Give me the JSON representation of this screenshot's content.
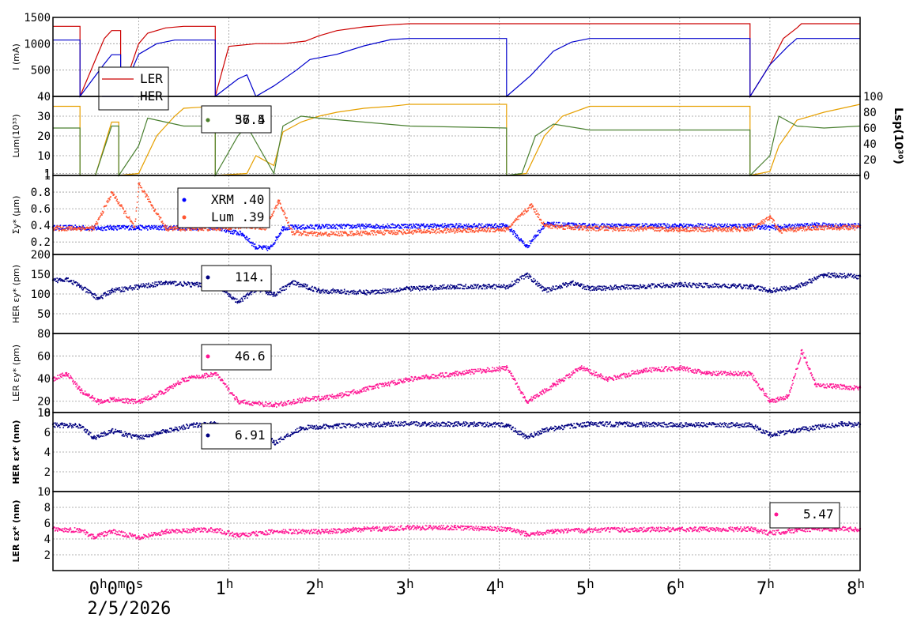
{
  "chart_data": {
    "type": "line",
    "x_ticks": [
      "0h0m0s",
      "1h",
      "2h",
      "3h",
      "4h",
      "5h",
      "6h",
      "7h",
      "8h"
    ],
    "x_tick_values": [
      0,
      1,
      2,
      3,
      4,
      5,
      6,
      7,
      8
    ],
    "x_range": [
      -0.95,
      8
    ],
    "date": "2/5/2026",
    "panels": [
      {
        "ylabel": "I (mA)",
        "ylim": [
          0,
          1500
        ],
        "yticks": [
          "500",
          "1000",
          "1500"
        ],
        "ytick_values": [
          500,
          1000,
          1500
        ],
        "legend": {
          "entries": [
            "LER",
            "HER"
          ],
          "placement": "top-left"
        },
        "series": [
          {
            "name": "LER",
            "color": "#cc0000",
            "style": "line",
            "x": [
              -0.95,
              -0.65,
              -0.65,
              -0.38,
              -0.3,
              -0.2,
              -0.2,
              0,
              0.1,
              0.3,
              0.5,
              0.85,
              0.85,
              1.0,
              1.3,
              1.6,
              1.85,
              2.0,
              2.2,
              2.5,
              2.8,
              3.0,
              3.3,
              4.0,
              5.0,
              6.0,
              6.78,
              6.78,
              7.0,
              7.15,
              7.3,
              7.35,
              8.0
            ],
            "y": [
              1330,
              1330,
              0,
              1100,
              1250,
              1250,
              0,
              1000,
              1200,
              1300,
              1330,
              1330,
              0,
              950,
              1000,
              1000,
              1050,
              1150,
              1250,
              1320,
              1360,
              1380,
              1380,
              1380,
              1380,
              1380,
              1380,
              0,
              600,
              1100,
              1300,
              1380,
              1380
            ]
          },
          {
            "name": "HER",
            "color": "#0000cc",
            "style": "line",
            "x": [
              -0.95,
              -0.65,
              -0.65,
              -0.38,
              -0.3,
              -0.2,
              -0.2,
              0,
              0.2,
              0.4,
              0.85,
              0.85,
              1.1,
              1.2,
              1.3,
              1.5,
              1.75,
              1.9,
              2.2,
              2.5,
              2.8,
              3.0,
              3.5,
              4.08,
              4.08,
              4.35,
              4.6,
              4.8,
              5.0,
              6.0,
              6.78,
              6.78,
              7.0,
              7.2,
              7.3,
              8.0
            ],
            "y": [
              1070,
              1070,
              0,
              620,
              790,
              790,
              0,
              800,
              1000,
              1070,
              1070,
              0,
              330,
              410,
              0,
              200,
              500,
              700,
              800,
              960,
              1080,
              1100,
              1100,
              1100,
              0,
              400,
              860,
              1030,
              1100,
              1100,
              1100,
              0,
              600,
              950,
              1100,
              1100
            ]
          }
        ]
      },
      {
        "ylabel": "Lum(10³³)",
        "ylim": [
          0,
          40
        ],
        "yticks": [
          "1",
          "10",
          "20",
          "30",
          "40"
        ],
        "ytick_values": [
          1,
          10,
          20,
          30,
          40
        ],
        "ylabel_right": "Lsp(10³⁰)",
        "ylim_right": [
          0,
          100
        ],
        "yticks_right": [
          "0",
          "20",
          "40",
          "60",
          "80",
          "100"
        ],
        "ytick_values_right": [
          0,
          20,
          40,
          60,
          80,
          100
        ],
        "legend": {
          "entries": [
            "57.4",
            "36.5"
          ],
          "placement": "top-left"
        },
        "series": [
          {
            "name": "57.4",
            "color": "#e6a000",
            "style": "line",
            "x": [
              -0.95,
              -0.65,
              -0.65,
              -0.48,
              -0.3,
              -0.22,
              -0.22,
              0,
              0.2,
              0.4,
              0.5,
              0.85,
              0.85,
              1.2,
              1.3,
              1.5,
              1.6,
              1.8,
              2.0,
              2.2,
              2.5,
              2.8,
              3.0,
              4.08,
              4.08,
              4.3,
              4.5,
              4.7,
              5.0,
              6.0,
              6.78,
              6.78,
              7.0,
              7.1,
              7.3,
              7.6,
              8.0
            ],
            "y": [
              35,
              35,
              0,
              0,
              27,
              27,
              0,
              1,
              20,
              30,
              34,
              35,
              0,
              1,
              10,
              5,
              22,
              27,
              30,
              32,
              34,
              35,
              36,
              36,
              0,
              1,
              20,
              30,
              35,
              35,
              35,
              0,
              2,
              15,
              28,
              32,
              36
            ]
          },
          {
            "name": "36.5",
            "color": "#4a8030",
            "style": "line",
            "x": [
              -0.95,
              -0.65,
              -0.65,
              -0.48,
              -0.3,
              -0.22,
              -0.22,
              0,
              0.1,
              0.3,
              0.5,
              0.85,
              0.85,
              1.1,
              1.2,
              1.5,
              1.6,
              1.8,
              2.0,
              2.5,
              3.0,
              4.08,
              4.08,
              4.25,
              4.4,
              4.6,
              5.0,
              6.0,
              6.78,
              6.78,
              7.0,
              7.1,
              7.3,
              7.6,
              8.0
            ],
            "y": [
              24,
              24,
              0,
              0,
              25,
              25,
              0,
              15,
              29,
              27,
              25,
              25,
              0,
              20,
              25,
              1,
              25,
              30,
              29,
              27,
              25,
              24,
              0,
              1,
              20,
              26,
              23,
              23,
              23,
              0,
              10,
              30,
              25,
              24,
              25
            ]
          }
        ]
      },
      {
        "ylabel": "Σy* (µm)",
        "ylim": [
          0.05,
          1.0
        ],
        "yticks": [
          "0.2",
          "0.4",
          "0.6",
          "0.8",
          "1"
        ],
        "ytick_values": [
          0.2,
          0.4,
          0.6,
          0.8,
          1.0
        ],
        "legend": {
          "entries": [
            "XRM   .40",
            "Lum   .39"
          ],
          "placement": "top-left"
        },
        "series": [
          {
            "name": "XRM   .40",
            "color": "#0000ff",
            "style": "points",
            "x": [
              -0.95,
              -0.65,
              -0.5,
              -0.3,
              0,
              0.5,
              0.85,
              1.15,
              1.3,
              1.45,
              1.6,
              2.0,
              3.0,
              4.08,
              4.3,
              4.5,
              5.0,
              6.0,
              6.78,
              7.0,
              7.5,
              8.0
            ],
            "y": [
              0.38,
              0.38,
              0.37,
              0.38,
              0.38,
              0.38,
              0.38,
              0.3,
              0.14,
              0.13,
              0.38,
              0.39,
              0.4,
              0.4,
              0.15,
              0.42,
              0.4,
              0.4,
              0.4,
              0.38,
              0.41,
              0.4
            ]
          },
          {
            "name": "Lum   .39",
            "color": "#ff5530",
            "style": "points",
            "x": [
              -0.95,
              -0.65,
              -0.5,
              -0.3,
              -0.05,
              0.0,
              0.3,
              0.85,
              1.2,
              1.4,
              1.55,
              1.7,
              2.0,
              3.0,
              4.08,
              4.35,
              4.5,
              5.0,
              6.0,
              6.78,
              7.0,
              7.1,
              7.5,
              8.0
            ],
            "y": [
              0.37,
              0.37,
              0.37,
              0.8,
              0.38,
              0.9,
              0.37,
              0.37,
              0.4,
              0.38,
              0.7,
              0.32,
              0.3,
              0.33,
              0.36,
              0.65,
              0.4,
              0.37,
              0.36,
              0.36,
              0.5,
              0.34,
              0.38,
              0.38
            ]
          }
        ]
      },
      {
        "ylabel": "HER εy* (pm)",
        "ylim": [
          0,
          200
        ],
        "yticks": [
          "50",
          "100",
          "150",
          "200"
        ],
        "ytick_values": [
          50,
          100,
          150,
          200
        ],
        "legend": {
          "entries": [
            "114."
          ],
          "placement": "top-left"
        },
        "series": [
          {
            "name": "114.",
            "color": "#000080",
            "style": "points",
            "x": [
              -0.95,
              -0.8,
              -0.65,
              -0.45,
              -0.3,
              0,
              0.3,
              0.6,
              0.85,
              1.1,
              1.3,
              1.5,
              1.7,
              2.0,
              2.5,
              3.0,
              3.5,
              4.08,
              4.3,
              4.5,
              4.8,
              5.0,
              5.5,
              6.0,
              6.78,
              7.0,
              7.3,
              7.6,
              8.0
            ],
            "y": [
              135,
              140,
              120,
              90,
              110,
              120,
              130,
              125,
              125,
              80,
              115,
              100,
              130,
              110,
              105,
              115,
              120,
              120,
              150,
              110,
              130,
              115,
              120,
              125,
              120,
              110,
              120,
              150,
              145
            ]
          }
        ]
      },
      {
        "ylabel": "LER εy* (pm)",
        "ylim": [
          10,
          80
        ],
        "yticks": [
          "10",
          "20",
          "40",
          "60",
          "80"
        ],
        "ytick_values": [
          10,
          20,
          40,
          60,
          80
        ],
        "legend": {
          "entries": [
            "46.6"
          ],
          "placement": "top-left"
        },
        "series": [
          {
            "name": "46.6",
            "color": "#ff1493",
            "style": "points",
            "x": [
              -0.95,
              -0.8,
              -0.65,
              -0.45,
              -0.3,
              0,
              0.3,
              0.5,
              0.85,
              1.1,
              1.5,
              1.85,
              2.2,
              2.6,
              3.0,
              3.5,
              4.08,
              4.3,
              4.6,
              4.9,
              5.2,
              5.6,
              6.0,
              6.3,
              6.78,
              7.0,
              7.2,
              7.35,
              7.5,
              8.0
            ],
            "y": [
              40,
              45,
              30,
              20,
              22,
              20,
              30,
              40,
              45,
              20,
              17,
              22,
              25,
              33,
              40,
              45,
              50,
              20,
              35,
              50,
              40,
              48,
              50,
              45,
              45,
              20,
              25,
              65,
              35,
              32
            ]
          }
        ]
      },
      {
        "ylabel": "HER εx* (nm)",
        "ylim": [
          0,
          8
        ],
        "yticks": [
          "2",
          "4",
          "6",
          "8"
        ],
        "ytick_values": [
          2,
          4,
          6,
          8
        ],
        "legend": {
          "entries": [
            "6.91"
          ],
          "placement": "top-left"
        },
        "series": [
          {
            "name": "6.91",
            "color": "#000080",
            "style": "points",
            "x": [
              -0.95,
              -0.65,
              -0.5,
              -0.3,
              0,
              0.3,
              0.6,
              0.85,
              1.1,
              1.3,
              1.5,
              1.8,
              2.2,
              2.8,
              3.5,
              4.08,
              4.3,
              4.5,
              4.8,
              5.0,
              6.0,
              6.78,
              7.0,
              7.3,
              7.8,
              8.0
            ],
            "y": [
              6.8,
              6.7,
              5.5,
              6.2,
              5.5,
              6.2,
              6.8,
              6.9,
              5.5,
              6.5,
              5.0,
              6.5,
              6.7,
              6.9,
              6.9,
              6.8,
              5.5,
              6.3,
              6.7,
              6.9,
              6.8,
              6.8,
              5.8,
              6.3,
              6.9,
              6.8
            ]
          }
        ]
      },
      {
        "ylabel": "LER εx* (nm)",
        "ylim": [
          0,
          10
        ],
        "yticks": [
          "2",
          "4",
          "6",
          "8",
          "10"
        ],
        "ytick_values": [
          2,
          4,
          6,
          8,
          10
        ],
        "legend": {
          "entries": [
            "5.47"
          ],
          "placement": "top-right"
        },
        "series": [
          {
            "name": "5.47",
            "color": "#ff1493",
            "style": "points",
            "x": [
              -0.95,
              -0.65,
              -0.5,
              -0.3,
              0,
              0.3,
              0.6,
              0.85,
              1.1,
              1.5,
              2.0,
              2.5,
              3.0,
              3.5,
              4.08,
              4.3,
              4.6,
              5.0,
              6.0,
              6.78,
              7.0,
              7.3,
              7.6,
              8.0
            ],
            "y": [
              5.3,
              5.2,
              4.3,
              5.0,
              4.3,
              5.0,
              5.2,
              5.2,
              4.5,
              5.0,
              5.0,
              5.3,
              5.5,
              5.5,
              5.3,
              4.7,
              5.0,
              5.2,
              5.3,
              5.3,
              4.8,
              5.2,
              5.4,
              5.3
            ]
          }
        ]
      }
    ]
  }
}
